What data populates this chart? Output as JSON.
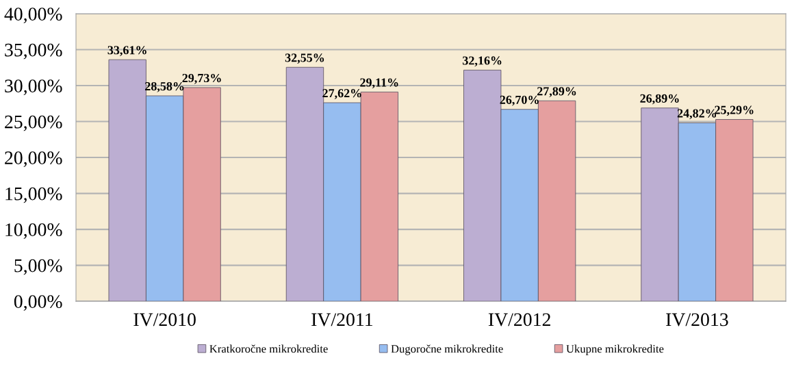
{
  "chart_data": {
    "type": "bar",
    "categories": [
      "IV/2010",
      "IV/2011",
      "IV/2012",
      "IV/2013"
    ],
    "series": [
      {
        "name": "Kratkoročne mikrokredite",
        "color": "#bcaed2",
        "values": [
          33.61,
          32.55,
          32.16,
          26.89
        ],
        "value_labels": [
          "33,61%",
          "32,55%",
          "32,16%",
          "26,89%"
        ]
      },
      {
        "name": "Dugoročne mikrokredite",
        "color": "#96bdf0",
        "values": [
          28.58,
          27.62,
          26.7,
          24.82
        ],
        "value_labels": [
          "28,58%",
          "27,62%",
          "26,70%",
          "24,82%"
        ]
      },
      {
        "name": "Ukupne mikrokredite",
        "color": "#e59f9f",
        "values": [
          29.73,
          29.11,
          27.89,
          25.29
        ],
        "value_labels": [
          "29,73%",
          "29,11%",
          "27,89%",
          "25,29%"
        ]
      }
    ],
    "ylim": [
      0,
      40
    ],
    "yticks": [
      {
        "value": 0,
        "label": "0,00%"
      },
      {
        "value": 5,
        "label": "5,00%"
      },
      {
        "value": 10,
        "label": "10,00%"
      },
      {
        "value": 15,
        "label": "15,00%"
      },
      {
        "value": 20,
        "label": "20,00%"
      },
      {
        "value": 25,
        "label": "25,00%"
      },
      {
        "value": 30,
        "label": "30,00%"
      },
      {
        "value": 35,
        "label": "35,00%"
      },
      {
        "value": 40,
        "label": "40,00%"
      }
    ],
    "grid": "y",
    "legend": "bottom"
  }
}
